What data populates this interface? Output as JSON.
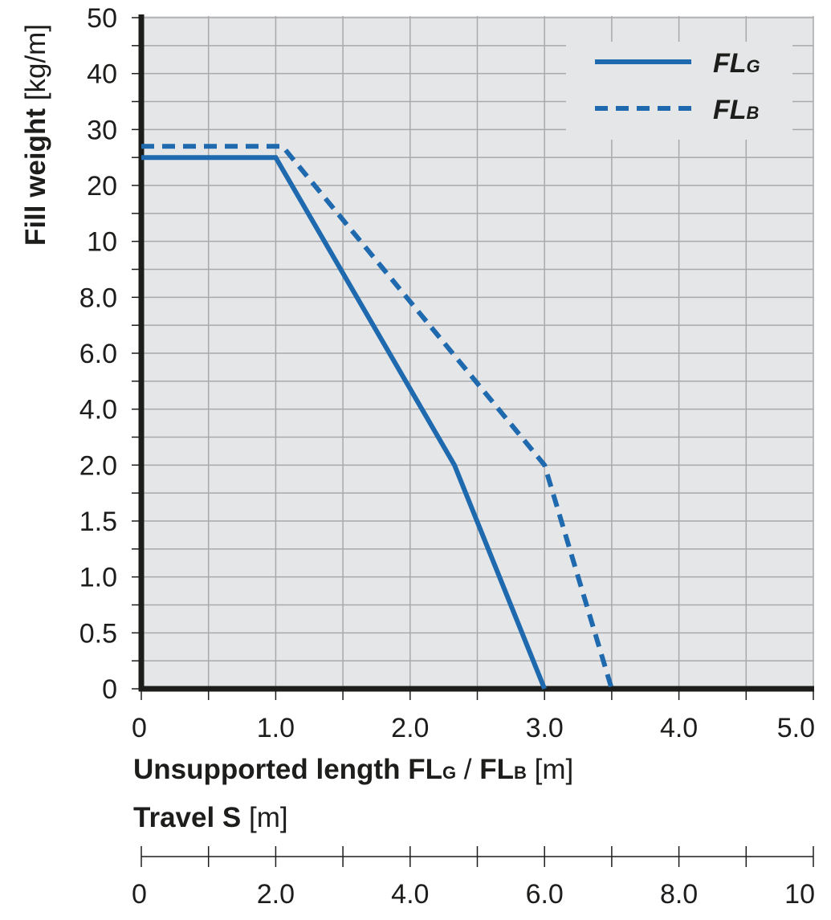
{
  "chart_data": {
    "type": "line",
    "ylabel_bold": "Fill weight",
    "ylabel_unit": "[kg/m]",
    "xlabel_bold_1": "Unsupported length FL",
    "xlabel_sub_1": "G",
    "xlabel_sep": " / ",
    "xlabel_bold_2": "FL",
    "xlabel_sub_2": "B",
    "xlabel_unit": " [m]",
    "x2label_bold": "Travel S",
    "x2label_unit": " [m]",
    "y_tick_labels": [
      "0",
      "0.5",
      "1.0",
      "1.5",
      "2.0",
      "4.0",
      "6.0",
      "8.0",
      "10",
      "20",
      "30",
      "40",
      "50"
    ],
    "x_ticks": [
      0,
      1,
      2,
      3,
      4,
      5
    ],
    "x_tick_labels": [
      "0",
      "1.0",
      "2.0",
      "3.0",
      "4.0",
      "5.0"
    ],
    "x2_ticks": [
      0,
      2,
      4,
      6,
      8,
      10
    ],
    "x2_tick_labels": [
      "0",
      "2.0",
      "4.0",
      "6.0",
      "8.0",
      "10"
    ],
    "xlim": [
      0,
      5
    ],
    "grid": true,
    "legend_position": "top-right",
    "series": [
      {
        "name": "FL",
        "name_sub": "G",
        "style": "solid",
        "color": "#1f6aae",
        "points": [
          [
            0,
            25
          ],
          [
            1.0,
            25
          ],
          [
            2.33,
            2.0
          ],
          [
            3.0,
            0
          ]
        ]
      },
      {
        "name": "FL",
        "name_sub": "B",
        "style": "dashed",
        "color": "#1f6aae",
        "points": [
          [
            0,
            27
          ],
          [
            1.05,
            27
          ],
          [
            3.0,
            2.0
          ],
          [
            3.5,
            0
          ]
        ]
      }
    ]
  },
  "colors": {
    "plot_background": "#e5e6e8",
    "grid": "#a8a9ab",
    "axis": "#1d1d1b",
    "series": "#1f6aae"
  }
}
